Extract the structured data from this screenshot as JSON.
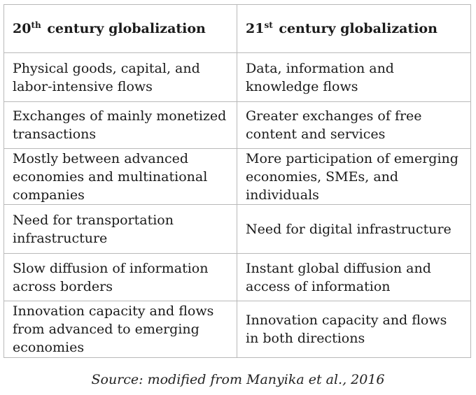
{
  "table": {
    "headers": [
      {
        "base": "20",
        "sup": "th",
        "rest": " century globalization"
      },
      {
        "base": "21",
        "sup": "st",
        "rest": " century globalization"
      }
    ],
    "rows": [
      [
        "Physical goods, capital, and labor-intensive flows",
        "Data, information and knowledge flows"
      ],
      [
        "Exchanges of mainly monetized transactions",
        "Greater exchanges of free content and services"
      ],
      [
        "Mostly between advanced economies and multinational companies",
        "More participation of emerging economies, SMEs, and individuals"
      ],
      [
        "Need for transportation infrastructure",
        "Need for digital infrastructure"
      ],
      [
        "Slow diffusion of information across borders",
        "Instant global diffusion and access of information"
      ],
      [
        "Innovation capacity and flows from advanced to emerging economies",
        "Innovation capacity and flows in both directions"
      ]
    ]
  },
  "caption": "Source: modified from Manyika et al., 2016"
}
